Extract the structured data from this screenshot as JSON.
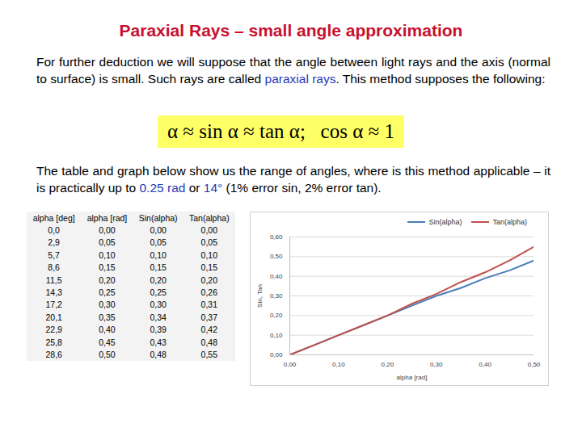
{
  "title": "Paraxial Rays – small angle approximation",
  "paragraph_1": [
    {
      "text": "For further deduction we will suppose that the angle between light rays and the axis (normal to surface) is small. Such rays are called ",
      "emphasis": false
    },
    {
      "text": "paraxial rays",
      "emphasis": true
    },
    {
      "text": ". This method supposes the following:",
      "emphasis": false
    }
  ],
  "formula": "α ≈ sin α ≈ tan α;   cos α ≈ 1",
  "paragraph_2": [
    {
      "text": "The table and graph below show us the range of angles, where is this method applicable – it is practically up to ",
      "emphasis": false
    },
    {
      "text": "0.25 rad",
      "emphasis": true
    },
    {
      "text": " or ",
      "emphasis": false
    },
    {
      "text": "14°",
      "emphasis": true
    },
    {
      "text": " (1% error sin, 2% error tan).",
      "emphasis": false
    }
  ],
  "table": {
    "header": [
      "alpha [deg]",
      "alpha [rad]",
      "Sin(alpha)",
      "Tan(alpha)"
    ],
    "rows": [
      [
        "0,0",
        "0,00",
        "0,00",
        "0,00"
      ],
      [
        "2,9",
        "0,05",
        "0,05",
        "0,05"
      ],
      [
        "5,7",
        "0,10",
        "0,10",
        "0,10"
      ],
      [
        "8,6",
        "0,15",
        "0,15",
        "0,15"
      ],
      [
        "11,5",
        "0,20",
        "0,20",
        "0,20"
      ],
      [
        "14,3",
        "0,25",
        "0,25",
        "0,26"
      ],
      [
        "17,2",
        "0,30",
        "0,30",
        "0,31"
      ],
      [
        "20,1",
        "0,35",
        "0,34",
        "0,37"
      ],
      [
        "22,9",
        "0,40",
        "0,39",
        "0,42"
      ],
      [
        "25,8",
        "0,45",
        "0,43",
        "0,48"
      ],
      [
        "28,6",
        "0,50",
        "0,48",
        "0,55"
      ]
    ]
  },
  "chart_data": {
    "type": "line",
    "x_label": "alpha [rad]",
    "y_label": "Sin, Tan",
    "x": [
      0,
      0.05,
      0.1,
      0.15,
      0.2,
      0.25,
      0.3,
      0.35,
      0.4,
      0.45,
      0.5
    ],
    "series": [
      {
        "name": "Sin(alpha)",
        "color": "#4a7ebb",
        "values": [
          0,
          0.05,
          0.1,
          0.15,
          0.2,
          0.25,
          0.3,
          0.34,
          0.39,
          0.43,
          0.48
        ]
      },
      {
        "name": "Tan(alpha)",
        "color": "#c0504d",
        "values": [
          0,
          0.05,
          0.1,
          0.15,
          0.2,
          0.26,
          0.31,
          0.37,
          0.42,
          0.48,
          0.55
        ]
      }
    ],
    "xlim": [
      0,
      0.5
    ],
    "xticks": [
      {
        "value": 0,
        "label": "0,00"
      },
      {
        "value": 0.1,
        "label": "0,10"
      },
      {
        "value": 0.2,
        "label": "0,20"
      },
      {
        "value": 0.3,
        "label": "0,30"
      },
      {
        "value": 0.4,
        "label": "0,40"
      },
      {
        "value": 0.5,
        "label": "0,50"
      }
    ],
    "ylim": [
      0,
      0.6
    ],
    "yticks": [
      {
        "value": 0,
        "label": "0,00"
      },
      {
        "value": 0.1,
        "label": "0,10"
      },
      {
        "value": 0.2,
        "label": "0,20"
      },
      {
        "value": 0.3,
        "label": "0,30"
      },
      {
        "value": 0.4,
        "label": "0,40"
      },
      {
        "value": 0.5,
        "label": "0,50"
      },
      {
        "value": 0.6,
        "label": "0,60"
      }
    ],
    "grid": true,
    "legend": "top"
  }
}
